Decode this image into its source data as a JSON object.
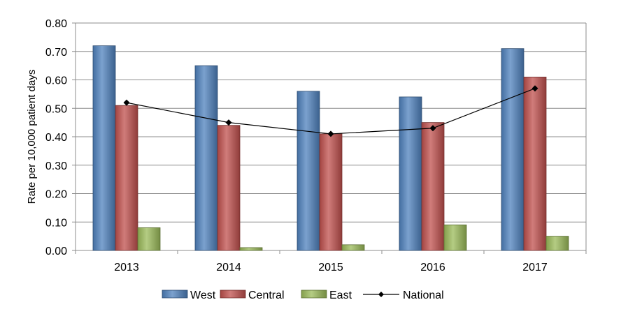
{
  "chart_data": {
    "type": "bar",
    "title": "",
    "xlabel": "",
    "ylabel": "Rate per 10,000 patient days",
    "ylim": [
      0,
      0.8
    ],
    "ytick_step": 0.1,
    "ytick_labels": [
      "0.00",
      "0.10",
      "0.20",
      "0.30",
      "0.40",
      "0.50",
      "0.60",
      "0.70",
      "0.80"
    ],
    "grid": true,
    "legend_position": "bottom",
    "categories": [
      "2013",
      "2014",
      "2015",
      "2016",
      "2017"
    ],
    "series": [
      {
        "name": "West",
        "kind": "bar",
        "color": "#4F81BD",
        "values": [
          0.72,
          0.65,
          0.56,
          0.54,
          0.71
        ]
      },
      {
        "name": "Central",
        "kind": "bar",
        "color": "#C0504D",
        "values": [
          0.51,
          0.44,
          0.41,
          0.45,
          0.61
        ]
      },
      {
        "name": "East",
        "kind": "bar",
        "color": "#9BBB59",
        "values": [
          0.08,
          0.01,
          0.02,
          0.09,
          0.05
        ]
      },
      {
        "name": "National",
        "kind": "line",
        "color": "#000000",
        "values": [
          0.52,
          0.45,
          0.41,
          0.43,
          0.57
        ]
      }
    ]
  }
}
